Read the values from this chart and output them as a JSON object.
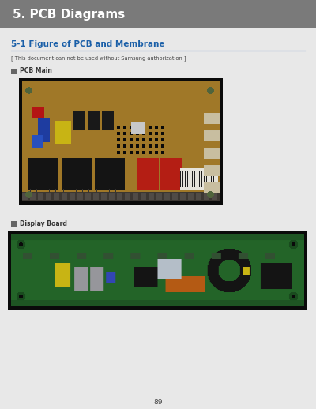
{
  "title": "5. PCB Diagrams",
  "title_bg_color": "#7a7a7a",
  "title_text_color": "#ffffff",
  "section_title": "5-1 Figure of PCB and Membrane",
  "section_title_color": "#1a5fa8",
  "section_line_color": "#2266bb",
  "note_text": "[ This document can not be used without Samsung authorization ]",
  "note_text_color": "#444444",
  "label_icon_color": "#666666",
  "label1_text": "PCB Main",
  "label2_text": "Display Board",
  "label_text_color": "#333333",
  "bg_color": "#e8e8e8",
  "page_number": "89",
  "body_bg": "#1a1a1a"
}
